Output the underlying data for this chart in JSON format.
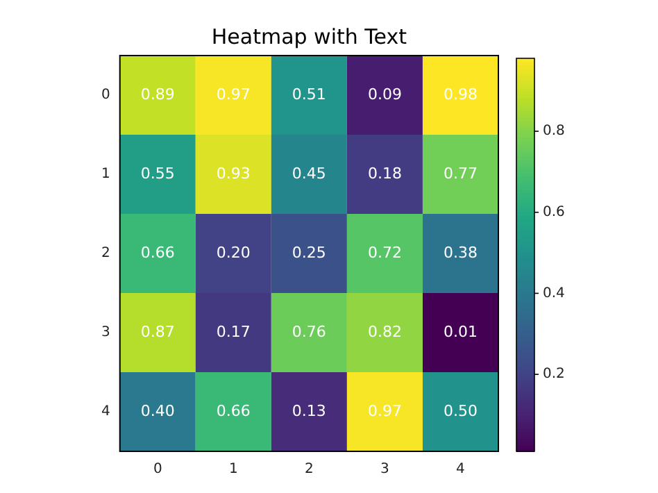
{
  "chart_data": {
    "type": "heatmap",
    "title": "Heatmap with Text",
    "categories": [
      "0",
      "1",
      "2",
      "3",
      "4"
    ],
    "y_categories": [
      "0",
      "1",
      "2",
      "3",
      "4"
    ],
    "cells": [
      [
        0.89,
        0.97,
        0.51,
        0.09,
        0.98
      ],
      [
        0.55,
        0.93,
        0.45,
        0.18,
        0.77
      ],
      [
        0.66,
        0.2,
        0.25,
        0.72,
        0.38
      ],
      [
        0.87,
        0.17,
        0.76,
        0.82,
        0.01
      ],
      [
        0.4,
        0.66,
        0.13,
        0.97,
        0.5
      ]
    ],
    "cell_labels": [
      [
        "0.89",
        "0.97",
        "0.51",
        "0.09",
        "0.98"
      ],
      [
        "0.55",
        "0.93",
        "0.45",
        "0.18",
        "0.77"
      ],
      [
        "0.66",
        "0.20",
        "0.25",
        "0.72",
        "0.38"
      ],
      [
        "0.87",
        "0.17",
        "0.76",
        "0.82",
        "0.01"
      ],
      [
        "0.40",
        "0.66",
        "0.13",
        "0.97",
        "0.50"
      ]
    ],
    "clim": [
      0.01,
      0.98
    ],
    "cticks": [
      0.2,
      0.4,
      0.6,
      0.8
    ]
  }
}
